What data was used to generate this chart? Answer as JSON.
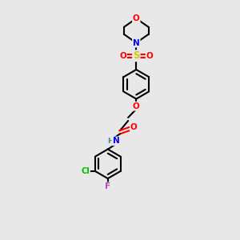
{
  "bg_color": "#e8e8e8",
  "bond_color": "#000000",
  "atom_colors": {
    "O": "#ff0000",
    "N": "#0000ff",
    "S": "#cccc00",
    "Cl": "#00bb00",
    "F": "#bb44bb",
    "H": "#448888",
    "C": "#000000"
  }
}
